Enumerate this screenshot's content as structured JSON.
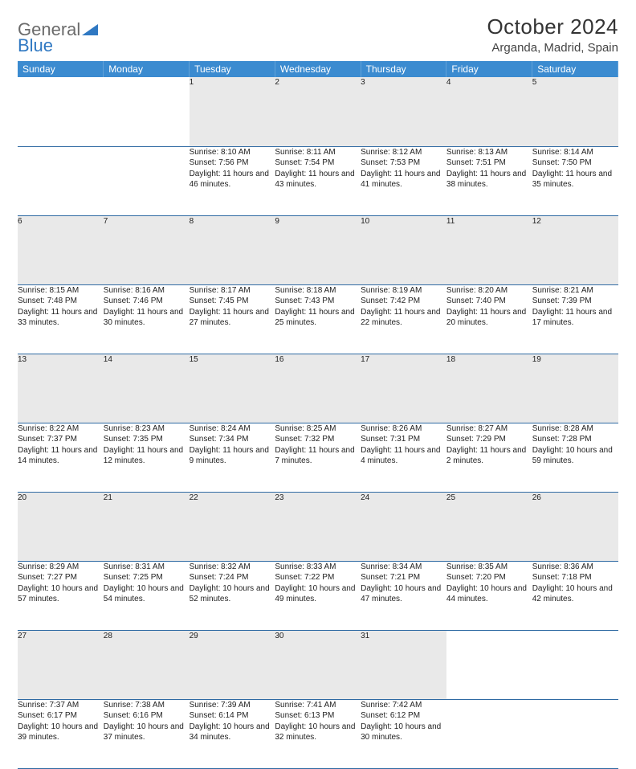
{
  "logo": {
    "text1": "General",
    "text2": "Blue"
  },
  "title": "October 2024",
  "location": "Arganda, Madrid, Spain",
  "colors": {
    "header_bg": "#3b8bd0",
    "header_text": "#ffffff",
    "daynum_bg": "#e9e9e9",
    "row_divider": "#2f6aa3",
    "logo_blue": "#2f78c2",
    "logo_gray": "#6b6b6b"
  },
  "weekdays": [
    "Sunday",
    "Monday",
    "Tuesday",
    "Wednesday",
    "Thursday",
    "Friday",
    "Saturday"
  ],
  "weeks": [
    [
      null,
      null,
      {
        "n": "1",
        "sunrise": "8:10 AM",
        "sunset": "7:56 PM",
        "daylight": "11 hours and 46 minutes."
      },
      {
        "n": "2",
        "sunrise": "8:11 AM",
        "sunset": "7:54 PM",
        "daylight": "11 hours and 43 minutes."
      },
      {
        "n": "3",
        "sunrise": "8:12 AM",
        "sunset": "7:53 PM",
        "daylight": "11 hours and 41 minutes."
      },
      {
        "n": "4",
        "sunrise": "8:13 AM",
        "sunset": "7:51 PM",
        "daylight": "11 hours and 38 minutes."
      },
      {
        "n": "5",
        "sunrise": "8:14 AM",
        "sunset": "7:50 PM",
        "daylight": "11 hours and 35 minutes."
      }
    ],
    [
      {
        "n": "6",
        "sunrise": "8:15 AM",
        "sunset": "7:48 PM",
        "daylight": "11 hours and 33 minutes."
      },
      {
        "n": "7",
        "sunrise": "8:16 AM",
        "sunset": "7:46 PM",
        "daylight": "11 hours and 30 minutes."
      },
      {
        "n": "8",
        "sunrise": "8:17 AM",
        "sunset": "7:45 PM",
        "daylight": "11 hours and 27 minutes."
      },
      {
        "n": "9",
        "sunrise": "8:18 AM",
        "sunset": "7:43 PM",
        "daylight": "11 hours and 25 minutes."
      },
      {
        "n": "10",
        "sunrise": "8:19 AM",
        "sunset": "7:42 PM",
        "daylight": "11 hours and 22 minutes."
      },
      {
        "n": "11",
        "sunrise": "8:20 AM",
        "sunset": "7:40 PM",
        "daylight": "11 hours and 20 minutes."
      },
      {
        "n": "12",
        "sunrise": "8:21 AM",
        "sunset": "7:39 PM",
        "daylight": "11 hours and 17 minutes."
      }
    ],
    [
      {
        "n": "13",
        "sunrise": "8:22 AM",
        "sunset": "7:37 PM",
        "daylight": "11 hours and 14 minutes."
      },
      {
        "n": "14",
        "sunrise": "8:23 AM",
        "sunset": "7:35 PM",
        "daylight": "11 hours and 12 minutes."
      },
      {
        "n": "15",
        "sunrise": "8:24 AM",
        "sunset": "7:34 PM",
        "daylight": "11 hours and 9 minutes."
      },
      {
        "n": "16",
        "sunrise": "8:25 AM",
        "sunset": "7:32 PM",
        "daylight": "11 hours and 7 minutes."
      },
      {
        "n": "17",
        "sunrise": "8:26 AM",
        "sunset": "7:31 PM",
        "daylight": "11 hours and 4 minutes."
      },
      {
        "n": "18",
        "sunrise": "8:27 AM",
        "sunset": "7:29 PM",
        "daylight": "11 hours and 2 minutes."
      },
      {
        "n": "19",
        "sunrise": "8:28 AM",
        "sunset": "7:28 PM",
        "daylight": "10 hours and 59 minutes."
      }
    ],
    [
      {
        "n": "20",
        "sunrise": "8:29 AM",
        "sunset": "7:27 PM",
        "daylight": "10 hours and 57 minutes."
      },
      {
        "n": "21",
        "sunrise": "8:31 AM",
        "sunset": "7:25 PM",
        "daylight": "10 hours and 54 minutes."
      },
      {
        "n": "22",
        "sunrise": "8:32 AM",
        "sunset": "7:24 PM",
        "daylight": "10 hours and 52 minutes."
      },
      {
        "n": "23",
        "sunrise": "8:33 AM",
        "sunset": "7:22 PM",
        "daylight": "10 hours and 49 minutes."
      },
      {
        "n": "24",
        "sunrise": "8:34 AM",
        "sunset": "7:21 PM",
        "daylight": "10 hours and 47 minutes."
      },
      {
        "n": "25",
        "sunrise": "8:35 AM",
        "sunset": "7:20 PM",
        "daylight": "10 hours and 44 minutes."
      },
      {
        "n": "26",
        "sunrise": "8:36 AM",
        "sunset": "7:18 PM",
        "daylight": "10 hours and 42 minutes."
      }
    ],
    [
      {
        "n": "27",
        "sunrise": "7:37 AM",
        "sunset": "6:17 PM",
        "daylight": "10 hours and 39 minutes."
      },
      {
        "n": "28",
        "sunrise": "7:38 AM",
        "sunset": "6:16 PM",
        "daylight": "10 hours and 37 minutes."
      },
      {
        "n": "29",
        "sunrise": "7:39 AM",
        "sunset": "6:14 PM",
        "daylight": "10 hours and 34 minutes."
      },
      {
        "n": "30",
        "sunrise": "7:41 AM",
        "sunset": "6:13 PM",
        "daylight": "10 hours and 32 minutes."
      },
      {
        "n": "31",
        "sunrise": "7:42 AM",
        "sunset": "6:12 PM",
        "daylight": "10 hours and 30 minutes."
      },
      null,
      null
    ]
  ],
  "labels": {
    "sunrise": "Sunrise: ",
    "sunset": "Sunset: ",
    "daylight": "Daylight: "
  }
}
